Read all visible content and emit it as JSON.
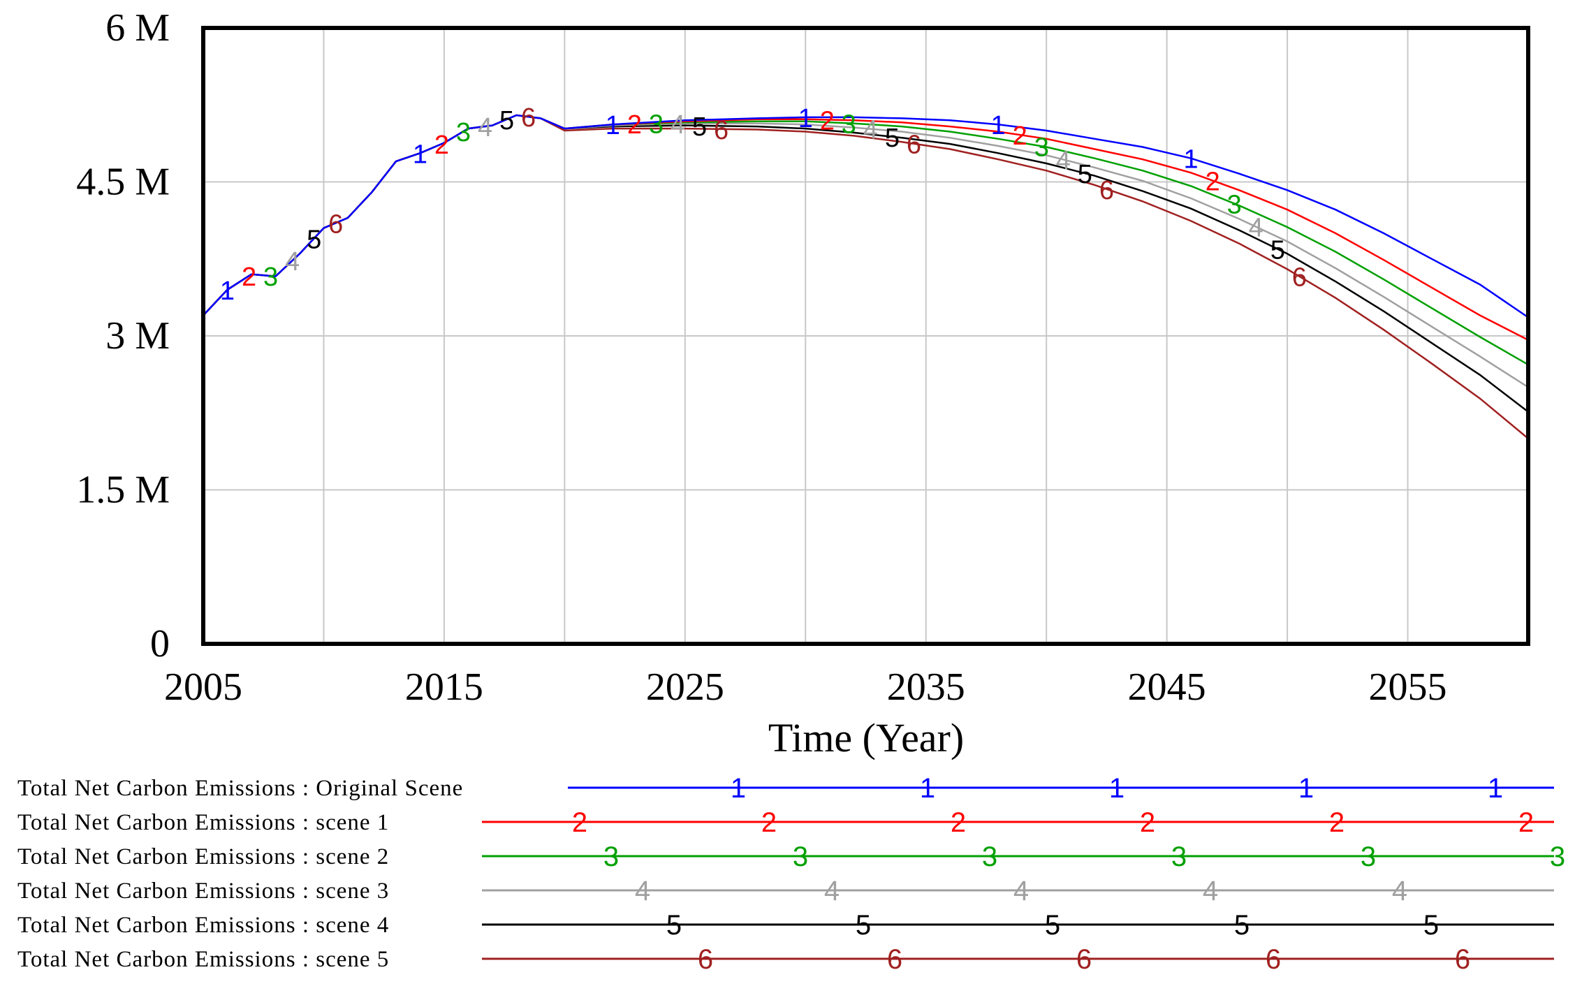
{
  "chart_data": {
    "type": "line",
    "title": "",
    "xlabel": "Time (Year)",
    "ylabel": "",
    "xlim": [
      2005,
      2060
    ],
    "ylim": [
      0,
      6000000
    ],
    "x_ticks": [
      2005,
      2015,
      2025,
      2035,
      2045,
      2055
    ],
    "x_tick_labels": [
      "2005",
      "2015",
      "2025",
      "2035",
      "2045",
      "2055"
    ],
    "y_ticks": [
      0,
      1500000,
      3000000,
      4500000,
      6000000
    ],
    "y_tick_labels": [
      "0",
      "1.5 M",
      "3 M",
      "4.5 M",
      "6 M"
    ],
    "grid": true,
    "legend_position": "bottom",
    "x": [
      2005,
      2006,
      2007,
      2008,
      2009,
      2010,
      2011,
      2012,
      2013,
      2014,
      2015,
      2016,
      2017,
      2018,
      2019,
      2020,
      2022,
      2025,
      2028,
      2030,
      2032,
      2034,
      2036,
      2038,
      2040,
      2042,
      2044,
      2046,
      2048,
      2050,
      2052,
      2054,
      2056,
      2058,
      2060
    ],
    "series": [
      {
        "name": "Total Net Carbon Emissions : Original Scene",
        "marker": "1",
        "color": "#0000ff",
        "values": [
          3200000,
          3450000,
          3600000,
          3580000,
          3800000,
          4050000,
          4150000,
          4400000,
          4700000,
          4780000,
          4880000,
          5020000,
          5050000,
          5150000,
          5120000,
          5020000,
          5060000,
          5100000,
          5120000,
          5130000,
          5130000,
          5120000,
          5100000,
          5060000,
          5000000,
          4920000,
          4840000,
          4730000,
          4580000,
          4420000,
          4230000,
          4000000,
          3750000,
          3500000,
          3180000
        ]
      },
      {
        "name": "Total Net Carbon Emissions : scene 1",
        "marker": "2",
        "color": "#ff0000",
        "values": [
          3200000,
          3450000,
          3600000,
          3580000,
          3800000,
          4050000,
          4150000,
          4400000,
          4700000,
          4780000,
          4880000,
          5020000,
          5050000,
          5150000,
          5120000,
          5020000,
          5060000,
          5090000,
          5110000,
          5110000,
          5100000,
          5080000,
          5040000,
          4990000,
          4920000,
          4820000,
          4720000,
          4590000,
          4420000,
          4230000,
          4000000,
          3740000,
          3470000,
          3200000,
          2960000
        ]
      },
      {
        "name": "Total Net Carbon Emissions : scene 2",
        "marker": "3",
        "color": "#00a000",
        "values": [
          3200000,
          3450000,
          3600000,
          3580000,
          3800000,
          4050000,
          4150000,
          4400000,
          4700000,
          4780000,
          4880000,
          5020000,
          5050000,
          5150000,
          5120000,
          5020000,
          5060000,
          5080000,
          5090000,
          5090000,
          5070000,
          5040000,
          4990000,
          4920000,
          4840000,
          4730000,
          4610000,
          4460000,
          4270000,
          4060000,
          3820000,
          3550000,
          3270000,
          2990000,
          2720000
        ]
      },
      {
        "name": "Total Net Carbon Emissions : scene 3",
        "marker": "4",
        "color": "#a0a0a0",
        "values": [
          3200000,
          3450000,
          3600000,
          3580000,
          3800000,
          4050000,
          4150000,
          4400000,
          4700000,
          4780000,
          4880000,
          5020000,
          5050000,
          5150000,
          5120000,
          5020000,
          5050000,
          5070000,
          5070000,
          5060000,
          5030000,
          4990000,
          4930000,
          4850000,
          4760000,
          4640000,
          4510000,
          4340000,
          4140000,
          3920000,
          3660000,
          3380000,
          3090000,
          2800000,
          2500000
        ]
      },
      {
        "name": "Total Net Carbon Emissions : scene 4",
        "marker": "5",
        "color": "#000000",
        "values": [
          3200000,
          3450000,
          3600000,
          3580000,
          3800000,
          4050000,
          4150000,
          4400000,
          4700000,
          4780000,
          4880000,
          5020000,
          5050000,
          5150000,
          5120000,
          5020000,
          5040000,
          5050000,
          5040000,
          5020000,
          4980000,
          4930000,
          4870000,
          4780000,
          4680000,
          4560000,
          4410000,
          4240000,
          4030000,
          3800000,
          3530000,
          3240000,
          2930000,
          2620000,
          2260000
        ]
      },
      {
        "name": "Total Net Carbon Emissions : scene 5",
        "marker": "6",
        "color": "#a02020",
        "values": [
          3200000,
          3450000,
          3600000,
          3580000,
          3800000,
          4050000,
          4150000,
          4400000,
          4700000,
          4780000,
          4880000,
          5020000,
          5050000,
          5150000,
          5120000,
          5000000,
          5020000,
          5020000,
          5010000,
          4990000,
          4950000,
          4890000,
          4820000,
          4720000,
          4610000,
          4470000,
          4310000,
          4120000,
          3900000,
          3650000,
          3370000,
          3060000,
          2730000,
          2390000,
          2000000
        ]
      }
    ]
  }
}
